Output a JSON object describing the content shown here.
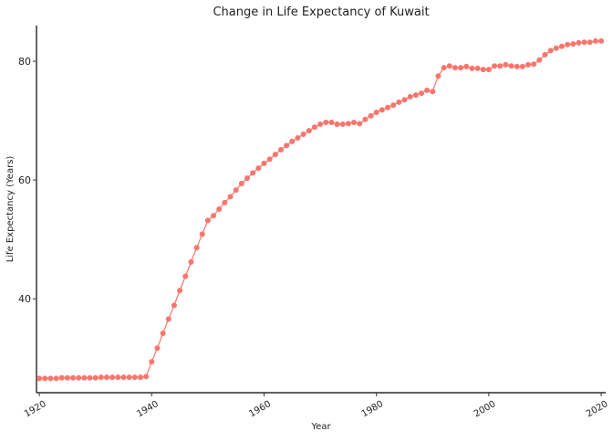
{
  "chart_data": {
    "type": "line",
    "title": "Change in Life Expectancy of Kuwait",
    "x_label": "Year",
    "y_label": "Life Expectancy (Years)",
    "x": [
      1920,
      1921,
      1922,
      1923,
      1924,
      1925,
      1926,
      1927,
      1928,
      1929,
      1930,
      1931,
      1932,
      1933,
      1934,
      1935,
      1936,
      1937,
      1938,
      1939,
      1940,
      1941,
      1942,
      1943,
      1944,
      1945,
      1946,
      1947,
      1948,
      1949,
      1950,
      1951,
      1952,
      1953,
      1954,
      1955,
      1956,
      1957,
      1958,
      1959,
      1960,
      1961,
      1962,
      1963,
      1964,
      1965,
      1966,
      1967,
      1968,
      1969,
      1970,
      1971,
      1972,
      1973,
      1974,
      1975,
      1976,
      1977,
      1978,
      1979,
      1980,
      1981,
      1982,
      1983,
      1984,
      1985,
      1986,
      1987,
      1988,
      1989,
      1990,
      1991,
      1992,
      1993,
      1994,
      1995,
      1996,
      1997,
      1998,
      1999,
      2000,
      2001,
      2002,
      2003,
      2004,
      2005,
      2006,
      2007,
      2008,
      2009,
      2010,
      2011,
      2012,
      2013,
      2014,
      2015,
      2016,
      2017,
      2018,
      2019,
      2020
    ],
    "series": [
      {
        "name": "Kuwait",
        "color": "#f8766d",
        "values": [
          26.6,
          26.6,
          26.6,
          26.6,
          26.7,
          26.7,
          26.7,
          26.7,
          26.7,
          26.7,
          26.7,
          26.8,
          26.8,
          26.8,
          26.8,
          26.8,
          26.8,
          26.8,
          26.8,
          26.9,
          29.4,
          31.7,
          34.2,
          36.6,
          38.9,
          41.4,
          43.8,
          46.2,
          48.6,
          50.9,
          53.2,
          54.0,
          55.1,
          56.2,
          57.2,
          58.3,
          59.4,
          60.3,
          61.2,
          62.0,
          62.8,
          63.5,
          64.3,
          65.1,
          65.8,
          66.5,
          67.1,
          67.7,
          68.3,
          68.9,
          69.4,
          69.7,
          69.7,
          69.4,
          69.4,
          69.5,
          69.7,
          69.5,
          70.2,
          70.8,
          71.4,
          71.8,
          72.2,
          72.6,
          73.1,
          73.5,
          74.0,
          74.3,
          74.6,
          75.1,
          74.9,
          77.5,
          78.9,
          79.2,
          78.9,
          78.9,
          79.1,
          78.8,
          78.8,
          78.6,
          78.6,
          79.2,
          79.2,
          79.4,
          79.2,
          79.1,
          79.1,
          79.4,
          79.5,
          80.2,
          81.1,
          81.8,
          82.2,
          82.5,
          82.8,
          82.9,
          83.1,
          83.2,
          83.2,
          83.4,
          83.4
        ]
      }
    ],
    "xlim": [
      1919.5,
      2020.8
    ],
    "ylim": [
      24.2,
      86
    ],
    "xticks": [
      1920,
      1940,
      1960,
      1980,
      2000,
      2020
    ],
    "yticks": [
      40,
      60,
      80
    ]
  }
}
